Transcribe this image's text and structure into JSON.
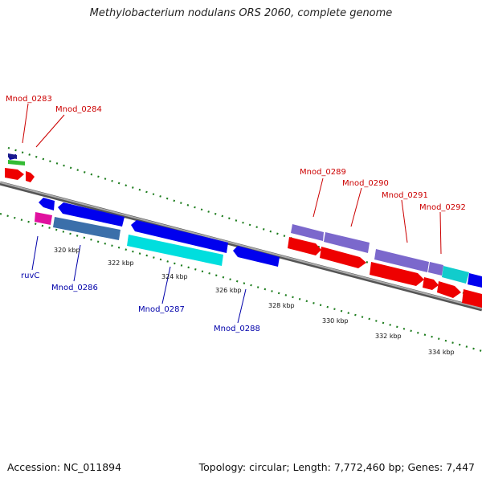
{
  "title": "Methylobacterium nodulans ORS 2060, complete genome",
  "footer": {
    "accession": "Accession: NC_011894",
    "topology": "Topology: circular; Length: 7,772,460 bp; Genes: 7,447"
  },
  "colors": {
    "label_forward": "#cc0000",
    "label_reverse": "#0000aa",
    "backbone": "#777777",
    "tick": "#1e7d1e"
  },
  "ticks": [
    "320 kbp",
    "322 kbp",
    "324 kbp",
    "326 kbp",
    "328 kbp",
    "330 kbp",
    "332 kbp",
    "334 kbp"
  ],
  "forward_labels": [
    "Mnod_0283",
    "Mnod_0284",
    "Mnod_0289",
    "Mnod_0290",
    "Mnod_0291",
    "Mnod_0292"
  ],
  "reverse_labels": [
    "ruvC",
    "Mnod_0286",
    "Mnod_0287",
    "Mnod_0288"
  ]
}
